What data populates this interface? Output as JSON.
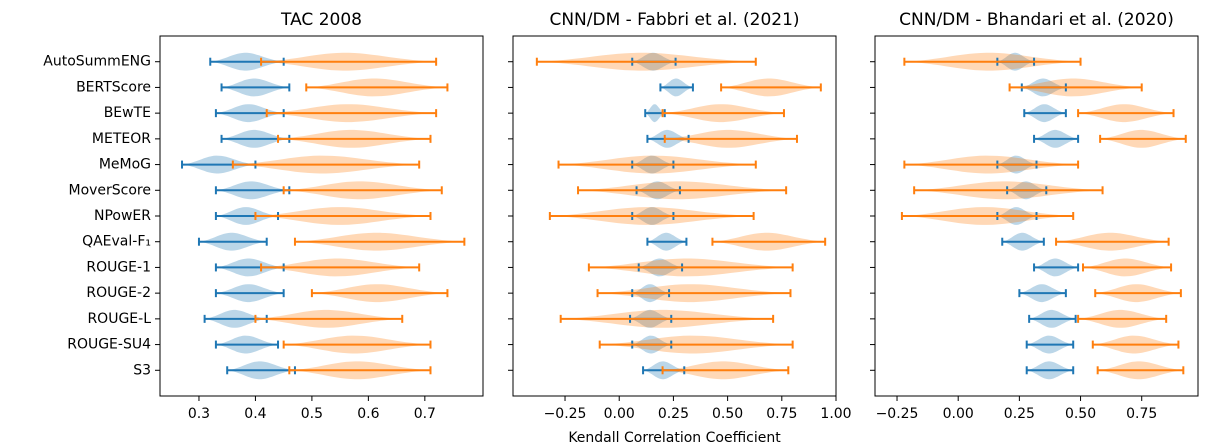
{
  "chart_data": [
    {
      "type": "violin",
      "title": "TAC 2008",
      "categories": [
        "AutoSummENG",
        "BERTScore",
        "BEwTE",
        "METEOR",
        "MeMoG",
        "MoverScore",
        "NPowER",
        "QAEval-F₁",
        "ROUGE-1",
        "ROUGE-2",
        "ROUGE-L",
        "ROUGE-SU4",
        "S3"
      ],
      "xlim": [
        0.231,
        0.803
      ],
      "xticks": [
        0.3,
        0.4,
        0.5,
        0.6,
        0.7
      ],
      "series": [
        {
          "color": "#1f77b4",
          "values": [
            [
              0.32,
              0.45
            ],
            [
              0.34,
              0.46
            ],
            [
              0.33,
              0.45
            ],
            [
              0.34,
              0.46
            ],
            [
              0.27,
              0.4
            ],
            [
              0.33,
              0.46
            ],
            [
              0.33,
              0.44
            ],
            [
              0.3,
              0.42
            ],
            [
              0.33,
              0.45
            ],
            [
              0.33,
              0.45
            ],
            [
              0.31,
              0.42
            ],
            [
              0.33,
              0.44
            ],
            [
              0.35,
              0.47
            ]
          ]
        },
        {
          "color": "#ff7f0e",
          "values": [
            [
              0.41,
              0.72
            ],
            [
              0.49,
              0.74
            ],
            [
              0.42,
              0.72
            ],
            [
              0.44,
              0.71
            ],
            [
              0.36,
              0.69
            ],
            [
              0.45,
              0.73
            ],
            [
              0.4,
              0.71
            ],
            [
              0.47,
              0.77
            ],
            [
              0.41,
              0.69
            ],
            [
              0.5,
              0.74
            ],
            [
              0.4,
              0.66
            ],
            [
              0.45,
              0.71
            ],
            [
              0.46,
              0.71
            ]
          ]
        }
      ]
    },
    {
      "type": "violin",
      "title": "CNN/DM - Fabbri et al. (2021)",
      "xlabel": "Kendall Correlation Coefficient",
      "xlim": [
        -0.49,
        1.0
      ],
      "xticks": [
        {
          "value": -0.25,
          "label": "−0.25"
        },
        {
          "value": 0,
          "label": "0.00"
        },
        {
          "value": 0.25,
          "label": "0.25"
        },
        {
          "value": 0.5,
          "label": "0.50"
        },
        {
          "value": 0.75,
          "label": "0.75"
        },
        {
          "value": 1,
          "label": "1.00"
        }
      ],
      "series": [
        {
          "color": "#1f77b4",
          "values": [
            [
              0.06,
              0.26
            ],
            [
              0.19,
              0.34
            ],
            [
              0.12,
              0.21
            ],
            [
              0.13,
              0.32
            ],
            [
              0.06,
              0.25
            ],
            [
              0.08,
              0.28
            ],
            [
              0.06,
              0.25
            ],
            [
              0.13,
              0.31
            ],
            [
              0.09,
              0.29
            ],
            [
              0.06,
              0.23
            ],
            [
              0.05,
              0.24
            ],
            [
              0.06,
              0.24
            ],
            [
              0.11,
              0.3
            ]
          ]
        },
        {
          "color": "#ff7f0e",
          "values": [
            [
              -0.38,
              0.63
            ],
            [
              0.47,
              0.93
            ],
            [
              0.2,
              0.76
            ],
            [
              0.21,
              0.82
            ],
            [
              -0.28,
              0.63
            ],
            [
              -0.19,
              0.77
            ],
            [
              -0.32,
              0.62
            ],
            [
              0.43,
              0.95
            ],
            [
              -0.14,
              0.8
            ],
            [
              -0.1,
              0.79
            ],
            [
              -0.27,
              0.71
            ],
            [
              -0.09,
              0.8
            ],
            [
              0.2,
              0.78
            ]
          ]
        }
      ]
    },
    {
      "type": "violin",
      "title": "CNN/DM - Bhandari et al. (2020)",
      "xlim": [
        -0.34,
        0.98
      ],
      "xticks": [
        {
          "value": -0.25,
          "label": "−0.25"
        },
        {
          "value": 0,
          "label": "0.00"
        },
        {
          "value": 0.25,
          "label": "0.25"
        },
        {
          "value": 0.5,
          "label": "0.50"
        },
        {
          "value": 0.75,
          "label": "0.75"
        }
      ],
      "series": [
        {
          "color": "#1f77b4",
          "values": [
            [
              0.16,
              0.31
            ],
            [
              0.26,
              0.44
            ],
            [
              0.27,
              0.44
            ],
            [
              0.31,
              0.49
            ],
            [
              0.16,
              0.32
            ],
            [
              0.2,
              0.36
            ],
            [
              0.16,
              0.32
            ],
            [
              0.18,
              0.35
            ],
            [
              0.31,
              0.49
            ],
            [
              0.25,
              0.44
            ],
            [
              0.29,
              0.48
            ],
            [
              0.28,
              0.47
            ],
            [
              0.28,
              0.47
            ]
          ]
        },
        {
          "color": "#ff7f0e",
          "values": [
            [
              -0.22,
              0.5
            ],
            [
              0.21,
              0.75
            ],
            [
              0.49,
              0.88
            ],
            [
              0.58,
              0.93
            ],
            [
              -0.22,
              0.49
            ],
            [
              -0.18,
              0.59
            ],
            [
              -0.23,
              0.47
            ],
            [
              0.4,
              0.86
            ],
            [
              0.51,
              0.87
            ],
            [
              0.56,
              0.91
            ],
            [
              0.49,
              0.85
            ],
            [
              0.55,
              0.9
            ],
            [
              0.57,
              0.92
            ]
          ]
        }
      ]
    }
  ]
}
